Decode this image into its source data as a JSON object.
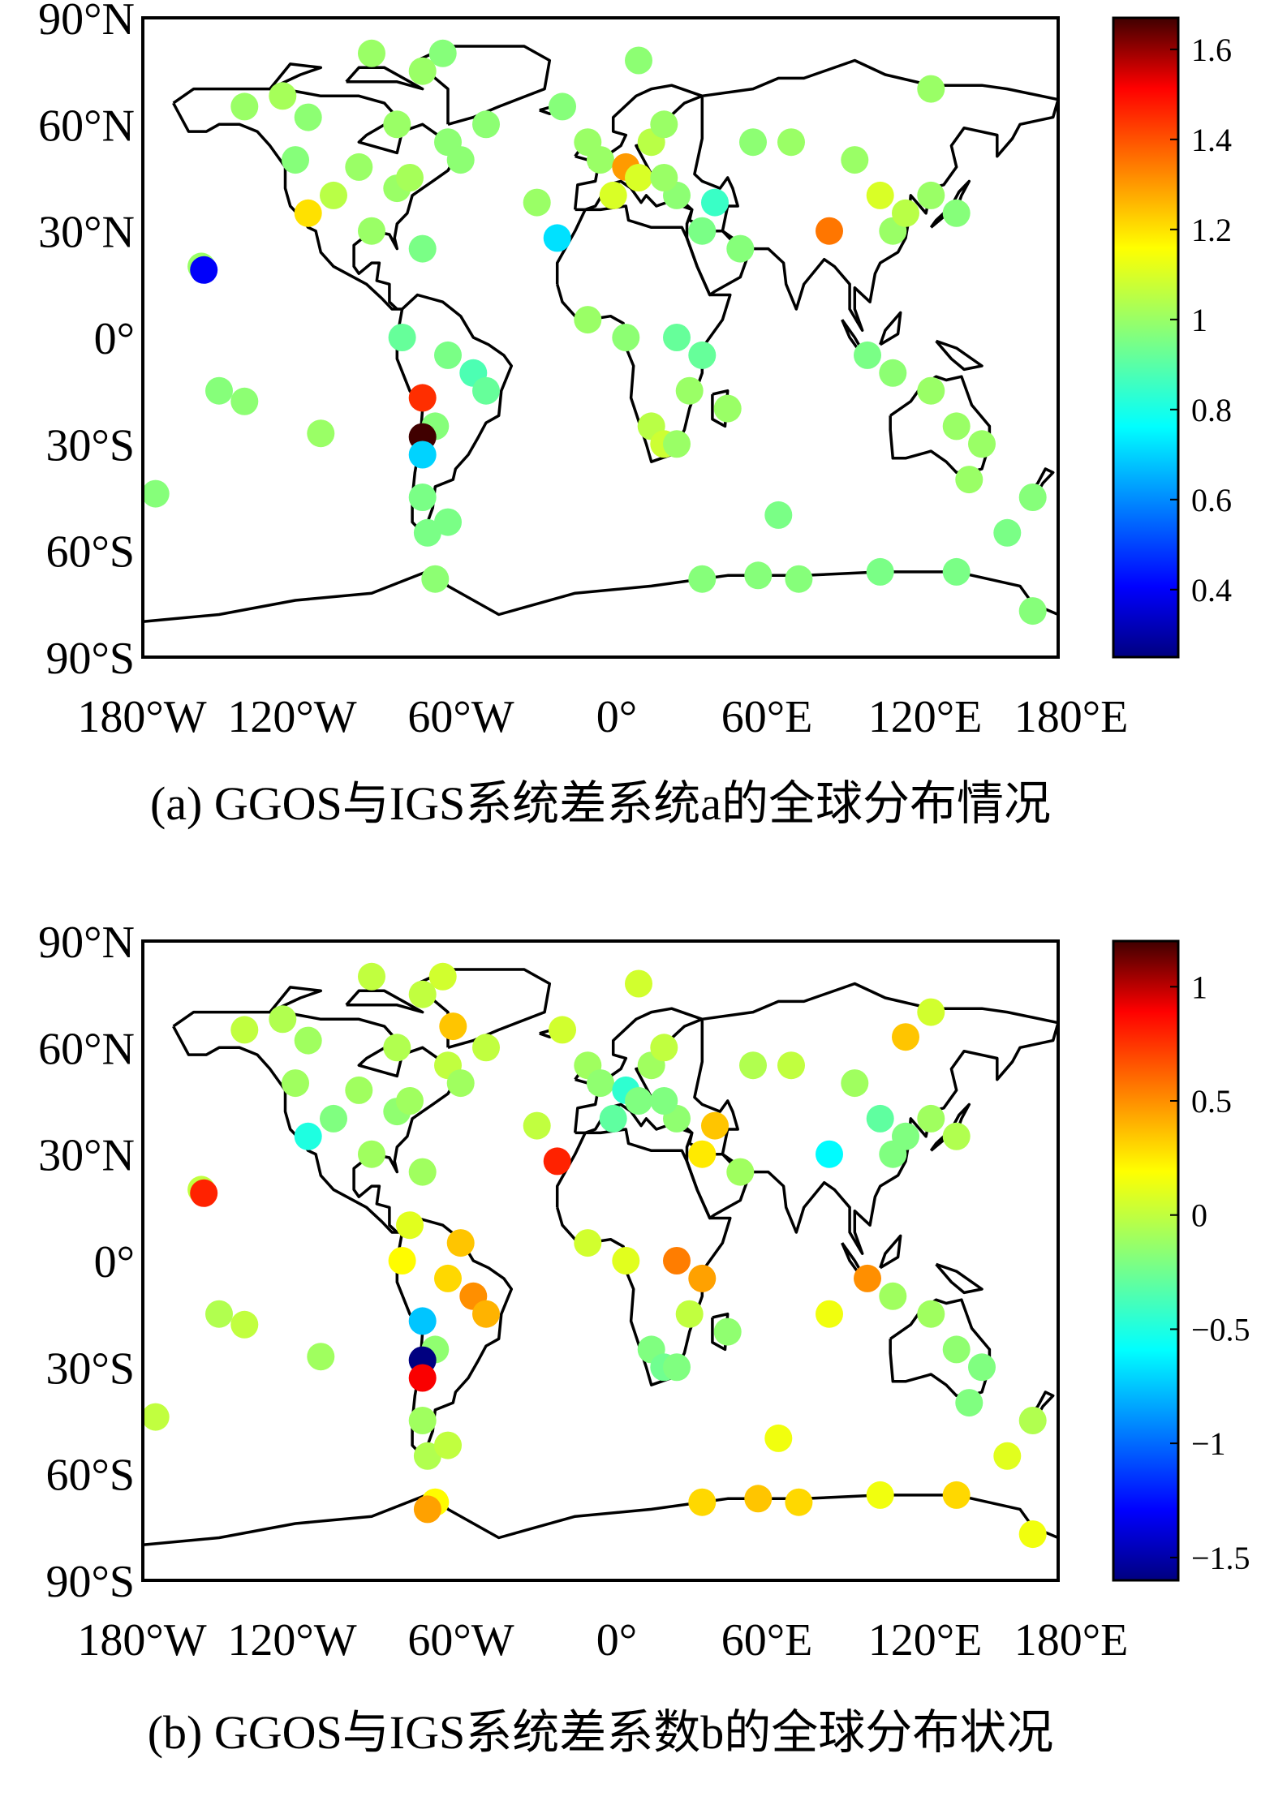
{
  "chart_data": [
    {
      "type": "scatter",
      "caption": "(a) GGOS与IGS系统差系统a的全球分布情况",
      "xticks": [
        "180°W",
        "120°W",
        "60°W",
        "0°",
        "60°E",
        "120°E",
        "180°E"
      ],
      "yticks": [
        "90°N",
        "60°N",
        "30°N",
        "0°",
        "30°S",
        "60°S",
        "90°S"
      ],
      "xlim": [
        -180,
        180
      ],
      "ylim": [
        -90,
        90
      ],
      "colorbar": {
        "min": 0.25,
        "max": 1.67,
        "ticks": [
          "1.6",
          "1.4",
          "1.2",
          "1",
          "0.8",
          "0.6",
          "0.4"
        ],
        "tick_values": [
          1.6,
          1.4,
          1.2,
          1.0,
          0.8,
          0.6,
          0.4
        ]
      },
      "points": [
        {
          "lon": -157,
          "lat": 20,
          "v": 1.0
        },
        {
          "lon": -156,
          "lat": 19,
          "v": 0.4
        },
        {
          "lon": -140,
          "lat": 65,
          "v": 1.0
        },
        {
          "lon": -125,
          "lat": 68,
          "v": 1.02
        },
        {
          "lon": -115,
          "lat": 62,
          "v": 0.98
        },
        {
          "lon": -120,
          "lat": 50,
          "v": 0.97
        },
        {
          "lon": -115,
          "lat": 35,
          "v": 1.2
        },
        {
          "lon": -105,
          "lat": 40,
          "v": 1.05
        },
        {
          "lon": -95,
          "lat": 48,
          "v": 1.0
        },
        {
          "lon": -90,
          "lat": 30,
          "v": 1.0
        },
        {
          "lon": -80,
          "lat": 42,
          "v": 1.0
        },
        {
          "lon": -75,
          "lat": 45,
          "v": 1.02
        },
        {
          "lon": -70,
          "lat": 25,
          "v": 0.95
        },
        {
          "lon": -60,
          "lat": 55,
          "v": 0.98
        },
        {
          "lon": -62,
          "lat": 80,
          "v": 0.97
        },
        {
          "lon": -70,
          "lat": 75,
          "v": 1.0
        },
        {
          "lon": -90,
          "lat": 80,
          "v": 1.0
        },
        {
          "lon": -80,
          "lat": 60,
          "v": 1.0
        },
        {
          "lon": -45,
          "lat": 60,
          "v": 0.98
        },
        {
          "lon": -55,
          "lat": 50,
          "v": 0.98
        },
        {
          "lon": -25,
          "lat": 38,
          "v": 1.0
        },
        {
          "lon": -17,
          "lat": 28,
          "v": 0.72
        },
        {
          "lon": -15,
          "lat": 65,
          "v": 0.97
        },
        {
          "lon": -5,
          "lat": 55,
          "v": 1.0
        },
        {
          "lon": 0,
          "lat": 50,
          "v": 1.0
        },
        {
          "lon": 5,
          "lat": 40,
          "v": 1.1
        },
        {
          "lon": 10,
          "lat": 48,
          "v": 1.3
        },
        {
          "lon": 15,
          "lat": 45,
          "v": 1.1
        },
        {
          "lon": 20,
          "lat": 55,
          "v": 1.05
        },
        {
          "lon": 25,
          "lat": 60,
          "v": 1.0
        },
        {
          "lon": 30,
          "lat": 40,
          "v": 0.98
        },
        {
          "lon": 25,
          "lat": 45,
          "v": 1.0
        },
        {
          "lon": 40,
          "lat": 30,
          "v": 0.95
        },
        {
          "lon": 45,
          "lat": 38,
          "v": 0.85
        },
        {
          "lon": 55,
          "lat": 25,
          "v": 0.97
        },
        {
          "lon": 60,
          "lat": 55,
          "v": 0.98
        },
        {
          "lon": 75,
          "lat": 55,
          "v": 1.0
        },
        {
          "lon": 90,
          "lat": 30,
          "v": 1.35
        },
        {
          "lon": 100,
          "lat": 50,
          "v": 1.0
        },
        {
          "lon": 110,
          "lat": 40,
          "v": 1.1
        },
        {
          "lon": 115,
          "lat": 30,
          "v": 1.0
        },
        {
          "lon": 120,
          "lat": 35,
          "v": 1.05
        },
        {
          "lon": 130,
          "lat": 40,
          "v": 1.0
        },
        {
          "lon": 140,
          "lat": 35,
          "v": 0.97
        },
        {
          "lon": 130,
          "lat": 70,
          "v": 1.0
        },
        {
          "lon": 15,
          "lat": 78,
          "v": 0.98
        },
        {
          "lon": -5,
          "lat": 5,
          "v": 1.0
        },
        {
          "lon": 10,
          "lat": 0,
          "v": 0.98
        },
        {
          "lon": 30,
          "lat": 0,
          "v": 0.92
        },
        {
          "lon": 40,
          "lat": -5,
          "v": 0.92
        },
        {
          "lon": 35,
          "lat": -15,
          "v": 1.0
        },
        {
          "lon": 20,
          "lat": -25,
          "v": 1.05
        },
        {
          "lon": 25,
          "lat": -30,
          "v": 1.08
        },
        {
          "lon": 30,
          "lat": -30,
          "v": 1.0
        },
        {
          "lon": 50,
          "lat": -20,
          "v": 1.0
        },
        {
          "lon": 70,
          "lat": -50,
          "v": 0.95
        },
        {
          "lon": 105,
          "lat": -5,
          "v": 0.95
        },
        {
          "lon": 115,
          "lat": -10,
          "v": 0.98
        },
        {
          "lon": 130,
          "lat": -15,
          "v": 1.0
        },
        {
          "lon": 140,
          "lat": -25,
          "v": 1.0
        },
        {
          "lon": 150,
          "lat": -30,
          "v": 1.0
        },
        {
          "lon": 145,
          "lat": -40,
          "v": 1.0
        },
        {
          "lon": 170,
          "lat": -45,
          "v": 0.97
        },
        {
          "lon": 160,
          "lat": -55,
          "v": 0.95
        },
        {
          "lon": -78,
          "lat": 0,
          "v": 0.92
        },
        {
          "lon": -60,
          "lat": -5,
          "v": 0.95
        },
        {
          "lon": -50,
          "lat": -10,
          "v": 0.88
        },
        {
          "lon": -45,
          "lat": -15,
          "v": 0.92
        },
        {
          "lon": -65,
          "lat": -25,
          "v": 0.97
        },
        {
          "lon": -70,
          "lat": -17,
          "v": 1.45
        },
        {
          "lon": -70,
          "lat": -28,
          "v": 1.67
        },
        {
          "lon": -70,
          "lat": -33,
          "v": 0.7
        },
        {
          "lon": -70,
          "lat": -45,
          "v": 0.95
        },
        {
          "lon": -68,
          "lat": -55,
          "v": 0.95
        },
        {
          "lon": -60,
          "lat": -52,
          "v": 0.95
        },
        {
          "lon": -65,
          "lat": -68,
          "v": 0.98
        },
        {
          "lon": -110,
          "lat": -27,
          "v": 1.0
        },
        {
          "lon": -150,
          "lat": -15,
          "v": 0.97
        },
        {
          "lon": -140,
          "lat": -18,
          "v": 0.98
        },
        {
          "lon": -175,
          "lat": -44,
          "v": 0.97
        },
        {
          "lon": 40,
          "lat": -68,
          "v": 0.97
        },
        {
          "lon": 62,
          "lat": -67,
          "v": 0.97
        },
        {
          "lon": 78,
          "lat": -68,
          "v": 0.97
        },
        {
          "lon": 110,
          "lat": -66,
          "v": 0.95
        },
        {
          "lon": 140,
          "lat": -66,
          "v": 0.95
        },
        {
          "lon": 170,
          "lat": -77,
          "v": 0.97
        }
      ]
    },
    {
      "type": "scatter",
      "caption": "(b) GGOS与IGS系统差系数b的全球分布状况",
      "xticks": [
        "180°W",
        "120°W",
        "60°W",
        "0°",
        "60°E",
        "120°E",
        "180°E"
      ],
      "yticks": [
        "90°N",
        "60°N",
        "30°N",
        "0°",
        "30°S",
        "60°S",
        "90°S"
      ],
      "xlim": [
        -180,
        180
      ],
      "ylim": [
        -90,
        90
      ],
      "colorbar": {
        "min": -1.6,
        "max": 1.2,
        "ticks": [
          "1",
          "0.5",
          "0",
          "−0.5",
          "−1",
          "−1.5"
        ],
        "tick_values": [
          1.0,
          0.5,
          0.0,
          -0.5,
          -1.0,
          -1.5
        ]
      },
      "points": [
        {
          "lon": -157,
          "lat": 20,
          "v": 0.0
        },
        {
          "lon": -156,
          "lat": 19,
          "v": 0.8
        },
        {
          "lon": -140,
          "lat": 65,
          "v": 0.0
        },
        {
          "lon": -125,
          "lat": 68,
          "v": -0.05
        },
        {
          "lon": -115,
          "lat": 62,
          "v": -0.1
        },
        {
          "lon": -120,
          "lat": 50,
          "v": -0.1
        },
        {
          "lon": -115,
          "lat": 35,
          "v": -0.5
        },
        {
          "lon": -105,
          "lat": 40,
          "v": -0.2
        },
        {
          "lon": -95,
          "lat": 48,
          "v": -0.1
        },
        {
          "lon": -90,
          "lat": 30,
          "v": -0.1
        },
        {
          "lon": -80,
          "lat": 42,
          "v": -0.15
        },
        {
          "lon": -75,
          "lat": 45,
          "v": -0.1
        },
        {
          "lon": -70,
          "lat": 25,
          "v": -0.1
        },
        {
          "lon": -60,
          "lat": 55,
          "v": 0.0
        },
        {
          "lon": -62,
          "lat": 80,
          "v": 0.05
        },
        {
          "lon": -70,
          "lat": 75,
          "v": 0.0
        },
        {
          "lon": -90,
          "lat": 80,
          "v": 0.0
        },
        {
          "lon": -58,
          "lat": 66,
          "v": 0.35
        },
        {
          "lon": -80,
          "lat": 60,
          "v": -0.05
        },
        {
          "lon": -45,
          "lat": 60,
          "v": 0.0
        },
        {
          "lon": -55,
          "lat": 50,
          "v": -0.1
        },
        {
          "lon": -25,
          "lat": 38,
          "v": 0.0
        },
        {
          "lon": -17,
          "lat": 28,
          "v": 0.8
        },
        {
          "lon": -15,
          "lat": 65,
          "v": 0.05
        },
        {
          "lon": -5,
          "lat": 55,
          "v": -0.1
        },
        {
          "lon": 0,
          "lat": 50,
          "v": -0.15
        },
        {
          "lon": 5,
          "lat": 40,
          "v": -0.3
        },
        {
          "lon": 10,
          "lat": 48,
          "v": -0.45
        },
        {
          "lon": 15,
          "lat": 45,
          "v": -0.2
        },
        {
          "lon": 20,
          "lat": 55,
          "v": -0.1
        },
        {
          "lon": 25,
          "lat": 60,
          "v": 0.0
        },
        {
          "lon": 30,
          "lat": 40,
          "v": -0.15
        },
        {
          "lon": 25,
          "lat": 45,
          "v": -0.2
        },
        {
          "lon": 40,
          "lat": 30,
          "v": 0.25
        },
        {
          "lon": 45,
          "lat": 38,
          "v": 0.35
        },
        {
          "lon": 55,
          "lat": 25,
          "v": -0.1
        },
        {
          "lon": 60,
          "lat": 55,
          "v": -0.05
        },
        {
          "lon": 75,
          "lat": 55,
          "v": 0.0
        },
        {
          "lon": 90,
          "lat": 30,
          "v": -0.6
        },
        {
          "lon": 100,
          "lat": 50,
          "v": -0.1
        },
        {
          "lon": 110,
          "lat": 40,
          "v": -0.3
        },
        {
          "lon": 115,
          "lat": 30,
          "v": -0.2
        },
        {
          "lon": 120,
          "lat": 35,
          "v": -0.2
        },
        {
          "lon": 130,
          "lat": 40,
          "v": -0.1
        },
        {
          "lon": 140,
          "lat": 35,
          "v": -0.05
        },
        {
          "lon": 130,
          "lat": 70,
          "v": 0.05
        },
        {
          "lon": 120,
          "lat": 63,
          "v": 0.35
        },
        {
          "lon": 15,
          "lat": 78,
          "v": 0.05
        },
        {
          "lon": -5,
          "lat": 5,
          "v": 0.05
        },
        {
          "lon": 10,
          "lat": 0,
          "v": 0.1
        },
        {
          "lon": 30,
          "lat": 0,
          "v": 0.55
        },
        {
          "lon": 40,
          "lat": -5,
          "v": 0.45
        },
        {
          "lon": 35,
          "lat": -15,
          "v": 0.0
        },
        {
          "lon": 20,
          "lat": -25,
          "v": -0.2
        },
        {
          "lon": 25,
          "lat": -30,
          "v": -0.25
        },
        {
          "lon": 30,
          "lat": -30,
          "v": -0.2
        },
        {
          "lon": 50,
          "lat": -20,
          "v": -0.15
        },
        {
          "lon": 70,
          "lat": -50,
          "v": 0.15
        },
        {
          "lon": 105,
          "lat": -5,
          "v": 0.5
        },
        {
          "lon": 90,
          "lat": -15,
          "v": 0.15
        },
        {
          "lon": 115,
          "lat": -10,
          "v": -0.1
        },
        {
          "lon": 130,
          "lat": -15,
          "v": -0.1
        },
        {
          "lon": 140,
          "lat": -25,
          "v": -0.15
        },
        {
          "lon": 150,
          "lat": -30,
          "v": -0.2
        },
        {
          "lon": 145,
          "lat": -40,
          "v": -0.2
        },
        {
          "lon": 170,
          "lat": -45,
          "v": -0.05
        },
        {
          "lon": 160,
          "lat": -55,
          "v": 0.1
        },
        {
          "lon": -78,
          "lat": 0,
          "v": 0.2
        },
        {
          "lon": -60,
          "lat": -5,
          "v": 0.3
        },
        {
          "lon": -50,
          "lat": -10,
          "v": 0.5
        },
        {
          "lon": -45,
          "lat": -15,
          "v": 0.4
        },
        {
          "lon": -55,
          "lat": 5,
          "v": 0.35
        },
        {
          "lon": -65,
          "lat": -25,
          "v": -0.15
        },
        {
          "lon": -70,
          "lat": -17,
          "v": -0.75
        },
        {
          "lon": -70,
          "lat": -28,
          "v": -1.6
        },
        {
          "lon": -70,
          "lat": -33,
          "v": 0.9
        },
        {
          "lon": -70,
          "lat": -45,
          "v": -0.1
        },
        {
          "lon": -68,
          "lat": -55,
          "v": -0.05
        },
        {
          "lon": -60,
          "lat": -52,
          "v": 0.0
        },
        {
          "lon": -65,
          "lat": -68,
          "v": 0.2
        },
        {
          "lon": -68,
          "lat": -70,
          "v": 0.45
        },
        {
          "lon": -75,
          "lat": 10,
          "v": 0.1
        },
        {
          "lon": -110,
          "lat": -27,
          "v": -0.1
        },
        {
          "lon": -150,
          "lat": -15,
          "v": -0.05
        },
        {
          "lon": -140,
          "lat": -18,
          "v": 0.0
        },
        {
          "lon": -175,
          "lat": -44,
          "v": 0.0
        },
        {
          "lon": 40,
          "lat": -68,
          "v": 0.3
        },
        {
          "lon": 62,
          "lat": -67,
          "v": 0.35
        },
        {
          "lon": 78,
          "lat": -68,
          "v": 0.3
        },
        {
          "lon": 110,
          "lat": -66,
          "v": 0.15
        },
        {
          "lon": 140,
          "lat": -66,
          "v": 0.3
        },
        {
          "lon": 170,
          "lat": -77,
          "v": 0.15
        }
      ]
    }
  ]
}
